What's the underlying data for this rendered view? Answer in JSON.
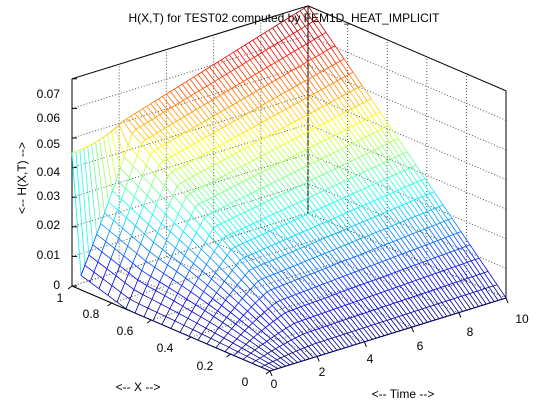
{
  "chart_data": {
    "type": "surface-mesh",
    "title": "H(X,T) for TEST02 computed by FEM1D_HEAT_IMPLICIT",
    "xlabel": "<-- Time -->",
    "ylabel": "<-- X -->",
    "zlabel": "<-- H(X,T) -->",
    "time_range": [
      0,
      10
    ],
    "x_range": [
      0,
      1
    ],
    "z_range": [
      0,
      0.07
    ],
    "time_ticks": [
      "0",
      "2",
      "4",
      "6",
      "8",
      "10"
    ],
    "x_ticks": [
      "0",
      "0.2",
      "0.4",
      "0.6",
      "0.8",
      "1"
    ],
    "z_ticks": [
      "0",
      "0.01",
      "0.02",
      "0.03",
      "0.04",
      "0.05",
      "0.06",
      "0.07"
    ],
    "grid": true,
    "colormap": "jet",
    "boundary": {
      "h_at_x0": "0",
      "h_at_x1_time0": 0.045,
      "h_at_x1_time10": 0.07,
      "h_minimum_at_time0": 0.005
    }
  }
}
